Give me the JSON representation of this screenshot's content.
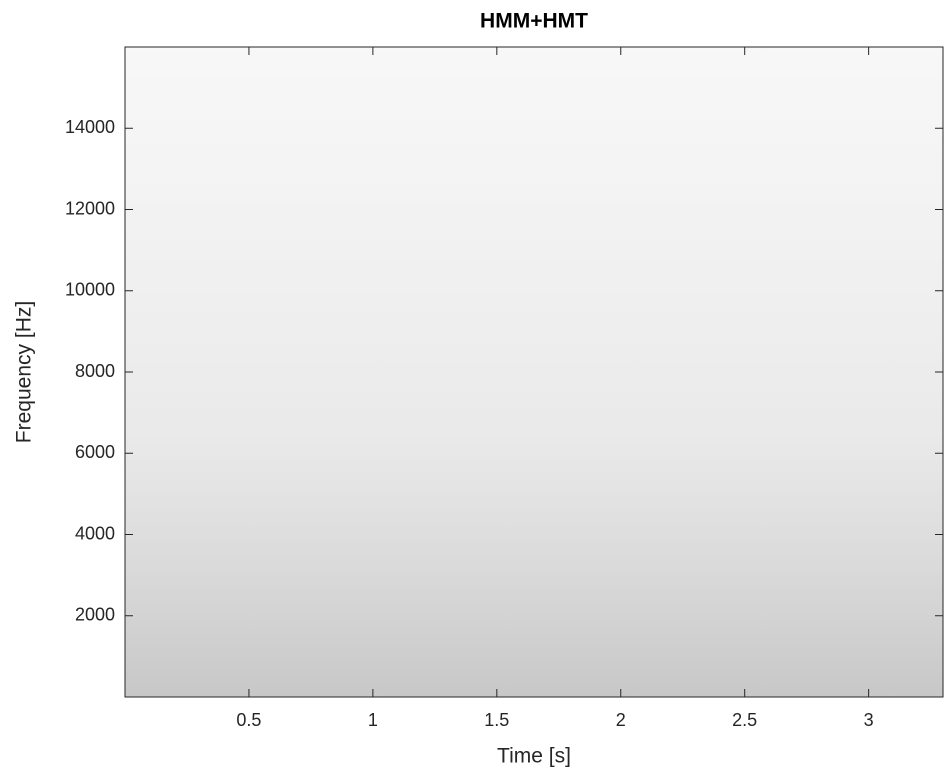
{
  "chart_data": {
    "type": "spectrogram",
    "title": "HMM+HMT",
    "xlabel": "Time [s]",
    "ylabel": "Frequency [Hz]",
    "xlim": [
      0,
      3.3
    ],
    "xticks": [
      0.5,
      1,
      1.5,
      2,
      2.5,
      3
    ],
    "ylim": [
      0,
      16000
    ],
    "yticks": [
      2000,
      4000,
      6000,
      8000,
      10000,
      12000,
      14000
    ]
  }
}
